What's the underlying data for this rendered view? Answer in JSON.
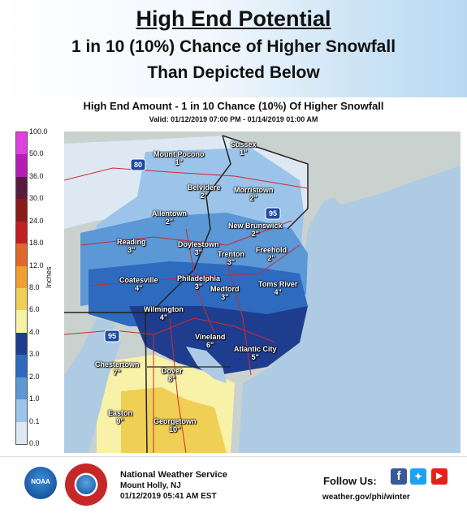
{
  "header": {
    "title": "High End Potential",
    "subtitle_line1": "1 in 10 (10%)  Chance of Higher Snowfall",
    "subtitle_line2": "Than Depicted Below"
  },
  "map": {
    "title": "High End Amount - 1 in 10 Chance (10%) Of Higher Snowfall",
    "valid": "Valid: 01/12/2019 07:00 PM - 01/14/2019 01:00 AM"
  },
  "legend": {
    "unit": "Inches",
    "items": [
      {
        "label": "100.0",
        "color": "#e040e0"
      },
      {
        "label": "50.0",
        "color": "#b51db5"
      },
      {
        "label": "36.0",
        "color": "#5a1a40"
      },
      {
        "label": "30.0",
        "color": "#8b1a1a"
      },
      {
        "label": "24.0",
        "color": "#c41f1f"
      },
      {
        "label": "18.0",
        "color": "#e0682a"
      },
      {
        "label": "12.0",
        "color": "#f0a030"
      },
      {
        "label": "8.0",
        "color": "#f0cf55"
      },
      {
        "label": "6.0",
        "color": "#f8f2a8"
      },
      {
        "label": "4.0",
        "color": "#1f3d8f"
      },
      {
        "label": "3.0",
        "color": "#2e6bbf"
      },
      {
        "label": "2.0",
        "color": "#5c97d6"
      },
      {
        "label": "1.0",
        "color": "#9cc4ea"
      },
      {
        "label": "0.1",
        "color": "#dde8f3"
      },
      {
        "label": "0.0",
        "color": "#ffffff"
      }
    ]
  },
  "cities": [
    {
      "name": "Sussex",
      "value": "1\""
    },
    {
      "name": "Mount Pocono",
      "value": "1\""
    },
    {
      "name": "Belvidere",
      "value": "2\""
    },
    {
      "name": "Morristown",
      "value": "2\""
    },
    {
      "name": "Allentown",
      "value": "2\""
    },
    {
      "name": "New Brunswick",
      "value": "2\""
    },
    {
      "name": "Reading",
      "value": "3\""
    },
    {
      "name": "Doylestown",
      "value": "3\""
    },
    {
      "name": "Freehold",
      "value": "2\""
    },
    {
      "name": "Trenton",
      "value": "3\""
    },
    {
      "name": "Coatesville",
      "value": "4\""
    },
    {
      "name": "Philadelphia",
      "value": "3\""
    },
    {
      "name": "Medford",
      "value": "3\""
    },
    {
      "name": "Toms River",
      "value": "4\""
    },
    {
      "name": "Wilmington",
      "value": "4\""
    },
    {
      "name": "Vineland",
      "value": "6\""
    },
    {
      "name": "Atlantic City",
      "value": "5\""
    },
    {
      "name": "Chestertown",
      "value": "7\""
    },
    {
      "name": "Dover",
      "value": "8\""
    },
    {
      "name": "Easton",
      "value": "9\""
    },
    {
      "name": "Georgetown",
      "value": "10\""
    }
  ],
  "highways": [
    "80",
    "95",
    "95"
  ],
  "footer": {
    "org": "National Weather Service",
    "location": "Mount Holly, NJ",
    "datetime": "01/12/2019 05:41 AM EST",
    "follow": "Follow Us:",
    "website": "weather.gov/phi/winter",
    "noaa_text": "NOAA",
    "social": [
      "facebook-icon",
      "twitter-icon",
      "youtube-icon"
    ]
  }
}
